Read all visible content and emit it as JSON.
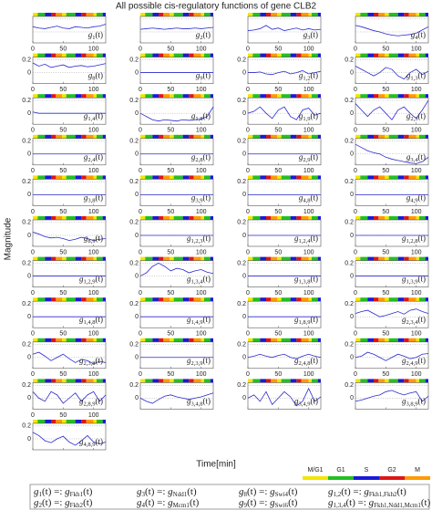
{
  "chart_data": {
    "type": "line-grid",
    "title": "All possible cis-regulatory functions of gene CLB2",
    "y_label": "Magnitude",
    "x_label": "Time[min]",
    "x": [
      0,
      10,
      20,
      30,
      40,
      50,
      60,
      70,
      80,
      90,
      100,
      110,
      120
    ],
    "xlim": [
      0,
      120
    ],
    "xticks": [
      0,
      50,
      100
    ],
    "ylim": [
      -0.17,
      0.24
    ],
    "yticks": [
      0,
      0.2
    ],
    "color": "#2a2ad0",
    "phases": [
      {
        "name": "M/G1",
        "color": "#f2e600"
      },
      {
        "name": "G1",
        "color": "#22c022"
      },
      {
        "name": "S",
        "color": "#1a1ad8"
      },
      {
        "name": "G2",
        "color": "#e01515"
      },
      {
        "name": "M",
        "color": "#ff9a00"
      }
    ],
    "phase_bar": [
      {
        "phase": 0,
        "start": 0,
        "end": 8
      },
      {
        "phase": 1,
        "start": 8,
        "end": 20
      },
      {
        "phase": 2,
        "start": 20,
        "end": 30
      },
      {
        "phase": 3,
        "start": 30,
        "end": 38
      },
      {
        "phase": 4,
        "start": 38,
        "end": 48
      },
      {
        "phase": 0,
        "start": 48,
        "end": 55
      },
      {
        "phase": 1,
        "start": 55,
        "end": 70
      },
      {
        "phase": 2,
        "start": 70,
        "end": 80
      },
      {
        "phase": 3,
        "start": 80,
        "end": 88
      },
      {
        "phase": 4,
        "start": 88,
        "end": 100
      },
      {
        "phase": 0,
        "start": 100,
        "end": 105
      },
      {
        "phase": 1,
        "start": 105,
        "end": 115
      },
      {
        "phase": 2,
        "start": 115,
        "end": 120
      }
    ],
    "series": [
      {
        "name": "g1(t)",
        "values": [
          0.08,
          0.06,
          0.05,
          0.07,
          0.09,
          0.06,
          0.05,
          0.08,
          0.07,
          0.06,
          0.08,
          0.09,
          0.12
        ]
      },
      {
        "name": "g2(t)",
        "values": [
          0.04,
          0.05,
          0.06,
          0.05,
          0.04,
          0.05,
          0.06,
          0.05,
          0.05,
          0.06,
          0.05,
          0.06,
          0.07
        ]
      },
      {
        "name": "g3(t)",
        "values": [
          0.02,
          0.03,
          0.05,
          0.1,
          0.04,
          0.06,
          0.02,
          0.04,
          0.06,
          0.03,
          0.05,
          0.03,
          0.04
        ]
      },
      {
        "name": "g4(t)",
        "values": [
          0.1,
          0.08,
          0.05,
          0.02,
          0,
          -0.03,
          -0.05,
          -0.06,
          -0.05,
          -0.04,
          -0.02,
          0.03,
          0.08
        ]
      },
      {
        "name": "g8(t)",
        "values": [
          0.15,
          0.1,
          0.13,
          0.08,
          0.1,
          0.12,
          0.08,
          0.1,
          0.11,
          0.09,
          0.1,
          0.12,
          0.14
        ]
      },
      {
        "name": "g9(t)",
        "values": [
          0,
          0,
          0,
          0,
          0,
          0,
          0,
          0,
          0,
          0,
          0,
          0,
          0
        ]
      },
      {
        "name": "g1,2(t)",
        "values": [
          0,
          0,
          0.01,
          -0.02,
          -0.03,
          0,
          0.02,
          -0.02,
          0,
          0.03,
          -0.02,
          0,
          0.02
        ]
      },
      {
        "name": "g1,3(t)",
        "values": [
          0.1,
          0.05,
          0,
          -0.05,
          0,
          0.08,
          0.05,
          -0.05,
          -0.1,
          0,
          0.05,
          -0.03,
          0.02
        ]
      },
      {
        "name": "g1,4(t)",
        "values": [
          0.02,
          0,
          0,
          0,
          0,
          0,
          0,
          0,
          0,
          0,
          0,
          0,
          0
        ]
      },
      {
        "name": "g1,8(t)",
        "values": [
          0,
          -0.05,
          -0.1,
          -0.12,
          -0.1,
          -0.11,
          -0.12,
          -0.1,
          -0.11,
          -0.1,
          -0.09,
          -0.05,
          0.1
        ]
      },
      {
        "name": "g1,9(t)",
        "values": [
          0,
          0.03,
          0.1,
          0,
          -0.08,
          0.05,
          0.1,
          -0.05,
          -0.1,
          0.05,
          0.08,
          -0.03,
          0
        ]
      },
      {
        "name": "g2,3(t)",
        "values": [
          0.15,
          0.05,
          -0.05,
          0.05,
          0.1,
          0,
          -0.1,
          0.05,
          0.1,
          0,
          -0.08,
          0.05,
          0.2
        ]
      },
      {
        "name": "g2,4(t)",
        "values": [
          0,
          0,
          0,
          0,
          0,
          0,
          0,
          0,
          0,
          0,
          0,
          0,
          0
        ]
      },
      {
        "name": "g2,8(t)",
        "values": [
          0,
          0,
          0,
          0,
          0,
          0,
          0,
          0,
          0,
          0,
          0,
          0,
          0
        ]
      },
      {
        "name": "g2,9(t)",
        "values": [
          0,
          0,
          0,
          0,
          0,
          0,
          0,
          0,
          0,
          0,
          0,
          0,
          0
        ]
      },
      {
        "name": "g3,4(t)",
        "values": [
          0.15,
          0.1,
          0.05,
          0.02,
          0,
          -0.05,
          -0.08,
          -0.1,
          -0.12,
          -0.14,
          -0.15,
          -0.12,
          -0.05
        ]
      },
      {
        "name": "g3,8(t)",
        "values": [
          0,
          0,
          0,
          0,
          0,
          0,
          0,
          0,
          0,
          0,
          0,
          0,
          0
        ]
      },
      {
        "name": "g3,9(t)",
        "values": [
          0,
          0,
          0,
          0,
          0,
          0,
          0,
          0,
          0,
          0,
          0,
          0,
          0
        ]
      },
      {
        "name": "g4,8(t)",
        "values": [
          0,
          0,
          0,
          0,
          0,
          0,
          0,
          0,
          0,
          0,
          0,
          0,
          0
        ]
      },
      {
        "name": "g4,9(t)",
        "values": [
          0,
          0,
          0,
          0,
          0,
          0,
          0,
          0,
          0,
          0,
          0,
          0,
          0
        ]
      },
      {
        "name": "g8,9(t)",
        "values": [
          0.05,
          0.02,
          -0.02,
          -0.04,
          -0.03,
          -0.05,
          -0.08,
          -0.06,
          -0.03,
          -0.05,
          -0.08,
          -0.06,
          -0.05
        ]
      },
      {
        "name": "g1,2,3(t)",
        "values": [
          0,
          0,
          0,
          0,
          0,
          0,
          0,
          0,
          0,
          0,
          0,
          0,
          0
        ]
      },
      {
        "name": "g1,2,4(t)",
        "values": [
          0,
          0,
          0,
          0,
          0,
          0,
          0,
          0,
          0,
          0,
          0,
          0,
          0
        ]
      },
      {
        "name": "g1,2,8(t)",
        "values": [
          0,
          0,
          0,
          0,
          0,
          0,
          0,
          0,
          0,
          0,
          0,
          0,
          0
        ]
      },
      {
        "name": "g1,2,9(t)",
        "values": [
          0,
          0,
          0,
          0,
          0,
          0,
          0,
          0,
          0,
          0,
          0,
          0,
          0
        ]
      },
      {
        "name": "g1,3,4(t)",
        "values": [
          0,
          0.05,
          0.15,
          0.2,
          0.15,
          0.08,
          0.12,
          0.1,
          0.05,
          0.08,
          0.1,
          0.06,
          0.04
        ]
      },
      {
        "name": "g1,3,8(t)",
        "values": [
          0,
          0,
          0,
          0,
          0,
          0,
          0,
          0,
          0,
          0,
          0,
          0,
          0
        ]
      },
      {
        "name": "g1,3,9(t)",
        "values": [
          0,
          0,
          0,
          0,
          0,
          0,
          0,
          0,
          0,
          0,
          0,
          0,
          0
        ]
      },
      {
        "name": "g1,4,8(t)",
        "values": [
          0,
          0,
          0,
          0,
          0,
          0,
          0,
          0,
          0,
          0,
          0,
          0,
          0
        ]
      },
      {
        "name": "g1,4,9(t)",
        "values": [
          0,
          0,
          0,
          0,
          0,
          0,
          0,
          0,
          0,
          0,
          0,
          0,
          0
        ]
      },
      {
        "name": "g1,8,9(t)",
        "values": [
          0,
          0,
          0,
          0,
          0,
          0,
          0,
          0,
          0,
          0,
          0,
          0,
          0
        ]
      },
      {
        "name": "g2,3,4(t)",
        "values": [
          0.05,
          0.08,
          0.1,
          0.05,
          0,
          0.02,
          0.05,
          0.08,
          0.04,
          0.1,
          0.12,
          0.08,
          0.05
        ]
      },
      {
        "name": "g2,3,8(t)",
        "values": [
          0.05,
          0.08,
          0.02,
          -0.05,
          0,
          0.05,
          -0.02,
          -0.08,
          -0.03,
          -0.05,
          -0.1,
          -0.06,
          -0.08
        ]
      },
      {
        "name": "g2,3,9(t)",
        "values": [
          0,
          0,
          0,
          0,
          0,
          0,
          0,
          0,
          0,
          0,
          0,
          0,
          0
        ]
      },
      {
        "name": "g2,4,8(t)",
        "values": [
          0,
          0.02,
          0.05,
          0.02,
          0,
          0.03,
          0.05,
          0,
          -0.02,
          0.02,
          0.05,
          0.02,
          0
        ]
      },
      {
        "name": "g2,4,9(t)",
        "values": [
          0,
          0.02,
          0.08,
          0.05,
          0,
          -0.05,
          0,
          0.05,
          0.02,
          -0.02,
          0,
          0.05,
          0.06
        ]
      },
      {
        "name": "g2,8,9(t)",
        "values": [
          0.1,
          0,
          -0.05,
          0.1,
          0.05,
          -0.08,
          0,
          0.08,
          -0.05,
          0.05,
          0.1,
          -0.05,
          0.05
        ]
      },
      {
        "name": "g3,4,8(t)",
        "values": [
          0,
          -0.05,
          -0.08,
          -0.02,
          0.03,
          0.05,
          0.02,
          0,
          -0.02,
          0,
          0.02,
          0.05,
          0.08
        ]
      },
      {
        "name": "g3,4,9(t)",
        "values": [
          0,
          0.05,
          -0.05,
          0.1,
          -0.1,
          0,
          0.1,
          0.02,
          -0.12,
          -0.05,
          0.15,
          -0.05,
          0.02
        ]
      },
      {
        "name": "g3,8,9(t)",
        "values": [
          -0.05,
          -0.03,
          0,
          0.03,
          0.05,
          0.1,
          0.12,
          0.08,
          0.05,
          0.08,
          0.1,
          -0.05,
          0.03
        ]
      },
      {
        "name": "g4,8,9(t)",
        "values": [
          0.1,
          0.05,
          -0.03,
          -0.06,
          0,
          0.04,
          -0.05,
          -0.1,
          -0.03,
          0.05,
          -0.05,
          -0.08,
          -0.05
        ]
      }
    ],
    "definitions": [
      "g1(t) =: gFkh1(t)",
      "g3(t) =: gNdd1(t)",
      "g8(t) =: gSwi4(t)",
      "g1,2(t) =: gFkh1,Fkh2(t)",
      "g2(t) =: gFkh2(t)",
      "g4(t) =: gMcm1(t)",
      "g9(t) =: gSwi6(t)",
      "g1,3,4(t) =: gFkh1,Ndd1,Mcm1(t)"
    ]
  }
}
